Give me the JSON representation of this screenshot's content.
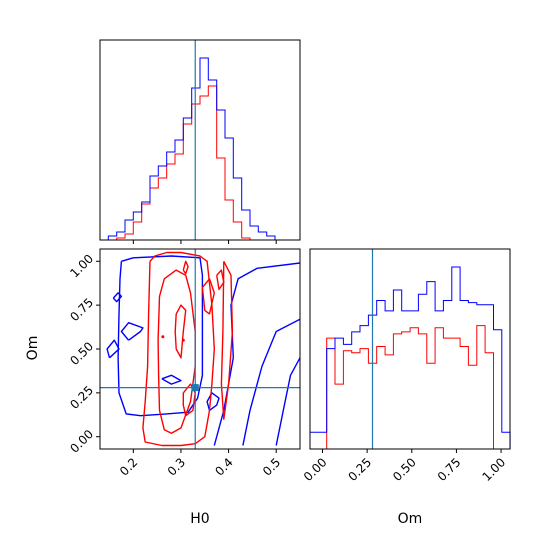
{
  "chart_data": {
    "type": "corner",
    "parameters": [
      "H0",
      "Om"
    ],
    "truths": {
      "H0": 0.33,
      "Om": 0.28
    },
    "colors": {
      "series_a": "#0000ff",
      "series_b": "#ff0000",
      "truth": "#1f77b4"
    },
    "series": [
      {
        "color": "blue"
      },
      {
        "color": "red"
      }
    ],
    "x_ticks": {
      "H0": [
        {
          "v": 0.2,
          "label": "0.2"
        },
        {
          "v": 0.3,
          "label": "0.3"
        },
        {
          "v": 0.4,
          "label": "0.4"
        },
        {
          "v": 0.5,
          "label": "0.5"
        }
      ],
      "Om": [
        {
          "v": 0.0,
          "label": "0.00"
        },
        {
          "v": 0.25,
          "label": "0.25"
        },
        {
          "v": 0.5,
          "label": "0.50"
        },
        {
          "v": 0.75,
          "label": "0.75"
        },
        {
          "v": 1.0,
          "label": "1.00"
        }
      ]
    },
    "y_ticks": {
      "Om": [
        {
          "v": 0.0,
          "label": "0.00"
        },
        {
          "v": 0.25,
          "label": "0.25"
        },
        {
          "v": 0.5,
          "label": "0.50"
        },
        {
          "v": 0.75,
          "label": "0.75"
        },
        {
          "v": 1.0,
          "label": "1.00"
        }
      ]
    },
    "xlim": {
      "H0": [
        0.13,
        0.55
      ],
      "Om": [
        -0.07,
        1.05
      ]
    },
    "ylim": {
      "Om": [
        -0.07,
        1.07
      ]
    },
    "hist_H0": {
      "bin_start": 0.13,
      "bin_width": 0.0175,
      "blue": [
        0,
        2,
        4,
        10,
        14,
        19,
        32,
        37,
        44,
        50,
        61,
        76,
        91,
        80,
        65,
        51,
        31,
        15,
        7,
        4,
        2,
        0,
        0,
        0
      ],
      "red": [
        0,
        0,
        1,
        3,
        9,
        18,
        26,
        31,
        38,
        43,
        58,
        68,
        72,
        77,
        41,
        20,
        9,
        1,
        0,
        0,
        0,
        0,
        0,
        0
      ]
    },
    "hist_Om": {
      "bin_start": -0.07,
      "bin_width": 0.0467,
      "blue": [
        8,
        8,
        48,
        53,
        50,
        56,
        59,
        64,
        71,
        66,
        76,
        66,
        66,
        74,
        80,
        66,
        71,
        87,
        71,
        70,
        69,
        69,
        57,
        8
      ],
      "red": [
        0,
        0,
        53,
        31,
        47,
        46,
        48,
        41,
        49,
        45,
        55,
        56,
        58,
        55,
        41,
        58,
        53,
        53,
        49,
        40,
        59,
        46,
        0,
        0
      ]
    },
    "contours": {
      "blue": [
        [
          [
            0.175,
            1.0
          ],
          [
            0.2,
            1.02
          ],
          [
            0.28,
            1.03
          ],
          [
            0.34,
            1.02
          ],
          [
            0.345,
            0.92
          ],
          [
            0.345,
            0.7
          ],
          [
            0.345,
            0.5
          ],
          [
            0.345,
            0.35
          ],
          [
            0.335,
            0.22
          ],
          [
            0.315,
            0.14
          ],
          [
            0.27,
            0.13
          ],
          [
            0.215,
            0.12
          ],
          [
            0.185,
            0.13
          ],
          [
            0.17,
            0.25
          ],
          [
            0.168,
            0.45
          ],
          [
            0.17,
            0.7
          ],
          [
            0.172,
            0.9
          ],
          [
            0.175,
            1.0
          ]
        ],
        [
          [
            0.15,
            0.45
          ],
          [
            0.17,
            0.5
          ],
          [
            0.16,
            0.55
          ],
          [
            0.145,
            0.5
          ],
          [
            0.15,
            0.45
          ]
        ],
        [
          [
            0.158,
            0.79
          ],
          [
            0.168,
            0.82
          ],
          [
            0.175,
            0.8
          ],
          [
            0.165,
            0.77
          ],
          [
            0.158,
            0.79
          ]
        ],
        [
          [
            0.19,
            0.55
          ],
          [
            0.215,
            0.6
          ],
          [
            0.22,
            0.62
          ],
          [
            0.19,
            0.65
          ],
          [
            0.175,
            0.6
          ],
          [
            0.19,
            0.55
          ]
        ],
        [
          [
            0.26,
            0.33
          ],
          [
            0.28,
            0.3
          ],
          [
            0.3,
            0.32
          ],
          [
            0.28,
            0.35
          ],
          [
            0.26,
            0.33
          ]
        ],
        [
          [
            0.37,
            -0.05
          ],
          [
            0.39,
            0.15
          ],
          [
            0.41,
            0.45
          ],
          [
            0.405,
            0.75
          ],
          [
            0.42,
            0.9
          ],
          [
            0.46,
            0.96
          ],
          [
            0.55,
            0.99
          ]
        ],
        [
          [
            0.43,
            -0.05
          ],
          [
            0.445,
            0.15
          ],
          [
            0.47,
            0.4
          ],
          [
            0.5,
            0.6
          ],
          [
            0.55,
            0.67
          ]
        ],
        [
          [
            0.5,
            -0.05
          ],
          [
            0.515,
            0.15
          ],
          [
            0.53,
            0.35
          ],
          [
            0.55,
            0.45
          ]
        ],
        [
          [
            0.36,
            0.15
          ],
          [
            0.375,
            0.18
          ],
          [
            0.38,
            0.22
          ],
          [
            0.365,
            0.25
          ],
          [
            0.355,
            0.2
          ],
          [
            0.36,
            0.15
          ]
        ]
      ],
      "red": [
        [
          [
            0.235,
            1.0
          ],
          [
            0.245,
            1.03
          ],
          [
            0.27,
            1.05
          ],
          [
            0.3,
            1.05
          ],
          [
            0.34,
            1.03
          ],
          [
            0.355,
            1.0
          ],
          [
            0.365,
            0.75
          ],
          [
            0.37,
            0.5
          ],
          [
            0.365,
            0.3
          ],
          [
            0.36,
            0.15
          ],
          [
            0.35,
            0.0
          ],
          [
            0.33,
            -0.04
          ],
          [
            0.3,
            -0.05
          ],
          [
            0.26,
            -0.05
          ],
          [
            0.225,
            -0.03
          ],
          [
            0.22,
            0.05
          ],
          [
            0.225,
            0.2
          ],
          [
            0.23,
            0.4
          ],
          [
            0.232,
            0.7
          ],
          [
            0.235,
            1.0
          ]
        ],
        [
          [
            0.255,
            0.8
          ],
          [
            0.265,
            0.9
          ],
          [
            0.29,
            0.95
          ],
          [
            0.31,
            0.92
          ],
          [
            0.32,
            0.82
          ],
          [
            0.33,
            0.6
          ],
          [
            0.33,
            0.4
          ],
          [
            0.32,
            0.2
          ],
          [
            0.3,
            0.05
          ],
          [
            0.28,
            0.02
          ],
          [
            0.265,
            0.04
          ],
          [
            0.255,
            0.15
          ],
          [
            0.253,
            0.35
          ],
          [
            0.252,
            0.55
          ],
          [
            0.255,
            0.8
          ]
        ],
        [
          [
            0.29,
            0.7
          ],
          [
            0.3,
            0.75
          ],
          [
            0.31,
            0.72
          ],
          [
            0.305,
            0.6
          ],
          [
            0.3,
            0.45
          ],
          [
            0.29,
            0.5
          ],
          [
            0.288,
            0.6
          ],
          [
            0.29,
            0.7
          ]
        ],
        [
          [
            0.305,
            0.25
          ],
          [
            0.32,
            0.3
          ],
          [
            0.33,
            0.25
          ],
          [
            0.325,
            0.15
          ],
          [
            0.31,
            0.12
          ],
          [
            0.305,
            0.18
          ],
          [
            0.305,
            0.25
          ]
        ],
        [
          [
            0.345,
            0.85
          ],
          [
            0.36,
            0.9
          ],
          [
            0.37,
            0.82
          ],
          [
            0.36,
            0.7
          ],
          [
            0.35,
            0.72
          ],
          [
            0.345,
            0.85
          ]
        ],
        [
          [
            0.39,
            1.0
          ],
          [
            0.405,
            0.92
          ],
          [
            0.408,
            0.6
          ],
          [
            0.4,
            0.3
          ],
          [
            0.39,
            0.1
          ],
          [
            0.385,
            0.3
          ],
          [
            0.388,
            0.6
          ],
          [
            0.39,
            1.0
          ]
        ],
        [
          [
            0.375,
            0.92
          ],
          [
            0.385,
            0.95
          ],
          [
            0.39,
            0.88
          ],
          [
            0.38,
            0.84
          ],
          [
            0.375,
            0.92
          ]
        ],
        [
          [
            0.305,
            0.95
          ],
          [
            0.31,
            1.0
          ],
          [
            0.315,
            0.97
          ],
          [
            0.31,
            0.93
          ],
          [
            0.305,
            0.95
          ]
        ]
      ]
    }
  }
}
